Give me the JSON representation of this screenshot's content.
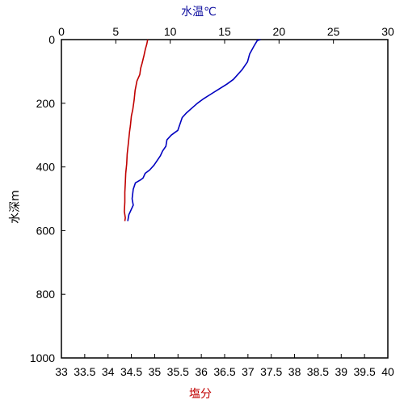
{
  "chart_data": {
    "type": "line",
    "title": "",
    "x_top": {
      "label": "水温℃",
      "label_color": "#1010a0",
      "range": [
        0,
        30
      ],
      "ticks": [
        0,
        5,
        10,
        15,
        20,
        25,
        30
      ]
    },
    "x_bottom": {
      "label": "塩分",
      "label_color": "#c00000",
      "range": [
        33,
        40
      ],
      "ticks": [
        "33",
        "33.5",
        "34",
        "34.5",
        "35",
        "35.5",
        "36",
        "36.5",
        "37",
        "37.5",
        "38",
        "38.5",
        "39",
        "39.5",
        "40"
      ]
    },
    "y": {
      "label": "水深m",
      "range": [
        0,
        1000
      ],
      "inverted": true,
      "ticks": [
        0,
        200,
        400,
        600,
        800,
        1000
      ]
    },
    "series": [
      {
        "axis": "top",
        "color": "#0000c0",
        "points": [
          [
            18.3,
            0
          ],
          [
            18.0,
            3
          ],
          [
            17.7,
            20
          ],
          [
            17.3,
            45
          ],
          [
            17.1,
            70
          ],
          [
            16.6,
            95
          ],
          [
            16.2,
            110
          ],
          [
            15.8,
            125
          ],
          [
            15.2,
            140
          ],
          [
            14.5,
            155
          ],
          [
            13.8,
            170
          ],
          [
            13.1,
            185
          ],
          [
            12.5,
            200
          ],
          [
            12.0,
            215
          ],
          [
            11.5,
            230
          ],
          [
            11.1,
            245
          ],
          [
            10.9,
            265
          ],
          [
            10.7,
            285
          ],
          [
            10.1,
            300
          ],
          [
            9.7,
            315
          ],
          [
            9.6,
            335
          ],
          [
            9.3,
            350
          ],
          [
            9.1,
            365
          ],
          [
            8.8,
            380
          ],
          [
            8.5,
            395
          ],
          [
            8.1,
            410
          ],
          [
            7.7,
            420
          ],
          [
            7.5,
            435
          ],
          [
            7.3,
            440
          ],
          [
            6.8,
            450
          ],
          [
            6.6,
            470
          ],
          [
            6.5,
            500
          ],
          [
            6.6,
            520
          ],
          [
            6.2,
            550
          ],
          [
            6.1,
            570
          ]
        ]
      },
      {
        "axis": "bottom",
        "color": "#c00000",
        "points": [
          [
            34.85,
            0
          ],
          [
            34.83,
            15
          ],
          [
            34.8,
            30
          ],
          [
            34.77,
            50
          ],
          [
            34.73,
            75
          ],
          [
            34.7,
            90
          ],
          [
            34.68,
            110
          ],
          [
            34.62,
            130
          ],
          [
            34.58,
            160
          ],
          [
            34.56,
            190
          ],
          [
            34.53,
            220
          ],
          [
            34.5,
            240
          ],
          [
            34.48,
            270
          ],
          [
            34.46,
            290
          ],
          [
            34.44,
            320
          ],
          [
            34.41,
            360
          ],
          [
            34.4,
            390
          ],
          [
            34.38,
            420
          ],
          [
            34.37,
            450
          ],
          [
            34.36,
            480
          ],
          [
            34.36,
            510
          ],
          [
            34.35,
            540
          ],
          [
            34.37,
            560
          ],
          [
            34.36,
            570
          ]
        ]
      }
    ]
  }
}
